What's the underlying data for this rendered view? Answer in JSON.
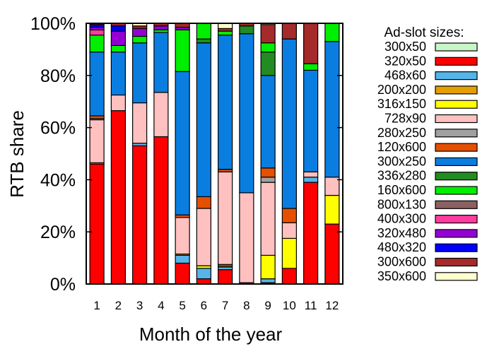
{
  "chart_data": {
    "type": "bar",
    "stacked": true,
    "title": "",
    "xlabel": "Month of the year",
    "ylabel": "RTB share",
    "ylim": [
      0,
      100
    ],
    "yticks": [
      "0%",
      "20%",
      "40%",
      "60%",
      "80%",
      "100%"
    ],
    "categories": [
      "1",
      "2",
      "3",
      "4",
      "5",
      "6",
      "7",
      "8",
      "9",
      "10",
      "11",
      "12"
    ],
    "legend_title": "Ad-slot sizes:",
    "legend_position": "right",
    "series": [
      {
        "name": "300x50",
        "color": "#c8f5c8",
        "values": [
          0,
          0,
          0,
          0,
          0,
          0,
          0,
          0,
          0,
          0,
          0,
          0
        ]
      },
      {
        "name": "320x50",
        "color": "#ff0000",
        "values": [
          46,
          66.5,
          53,
          56.5,
          8,
          2,
          5.5,
          0.5,
          0.5,
          6,
          39,
          23
        ]
      },
      {
        "name": "468x60",
        "color": "#56b4e9",
        "values": [
          0.5,
          0,
          1,
          0,
          3,
          4,
          1,
          0,
          1.5,
          0,
          2,
          0
        ]
      },
      {
        "name": "200x200",
        "color": "#e69f00",
        "values": [
          0,
          0,
          0,
          0,
          0.5,
          0,
          0.5,
          0,
          0,
          0,
          0,
          0
        ]
      },
      {
        "name": "316x150",
        "color": "#ffff00",
        "values": [
          0,
          0,
          0,
          0,
          0,
          1,
          0.5,
          0,
          9,
          11.5,
          0,
          11
        ]
      },
      {
        "name": "728x90",
        "color": "#ffc0c0",
        "values": [
          16.5,
          6,
          15.5,
          17,
          14,
          22,
          35.5,
          34.5,
          28,
          6,
          2,
          7
        ]
      },
      {
        "name": "280x250",
        "color": "#a0a0a0",
        "values": [
          0.5,
          0,
          0,
          0,
          0,
          0,
          0,
          0,
          2,
          0,
          0,
          0
        ]
      },
      {
        "name": "120x600",
        "color": "#e55000",
        "values": [
          1,
          0,
          0,
          0,
          1,
          4.5,
          1,
          0,
          3.5,
          5.5,
          0,
          0
        ]
      },
      {
        "name": "300x250",
        "color": "#0a7ee0",
        "values": [
          24.5,
          16.5,
          23,
          23,
          55,
          59,
          51.5,
          61,
          35.5,
          65,
          39,
          52
        ]
      },
      {
        "name": "336x280",
        "color": "#228b22",
        "values": [
          0,
          0,
          0,
          0,
          0,
          1.5,
          0,
          3,
          9,
          0,
          0,
          0
        ]
      },
      {
        "name": "160x600",
        "color": "#00ee00",
        "values": [
          6.5,
          2.5,
          2.5,
          1,
          16,
          6,
          1.5,
          0,
          3.5,
          0,
          2.5,
          7
        ]
      },
      {
        "name": "800x130",
        "color": "#8b6060",
        "values": [
          0,
          0,
          0,
          0,
          0,
          0,
          0,
          0,
          0,
          0,
          0,
          0
        ]
      },
      {
        "name": "400x300",
        "color": "#ff3ca0",
        "values": [
          2,
          0,
          0,
          0,
          0,
          0,
          0,
          0,
          0,
          0,
          0,
          0
        ]
      },
      {
        "name": "320x480",
        "color": "#9400d3",
        "values": [
          1,
          5.5,
          3,
          1.5,
          1,
          0,
          0,
          0,
          0,
          0,
          0,
          0
        ]
      },
      {
        "name": "480x320",
        "color": "#0000ff",
        "values": [
          1,
          2,
          0,
          0,
          0,
          0,
          0,
          0,
          0,
          0,
          0,
          0
        ]
      },
      {
        "name": "300x600",
        "color": "#a52a2a",
        "values": [
          0.5,
          1,
          1,
          1,
          1.5,
          0,
          1,
          1,
          7,
          6,
          15.5,
          0
        ]
      },
      {
        "name": "350x600",
        "color": "#ffffcc",
        "values": [
          0,
          0,
          1,
          0,
          0,
          0,
          2,
          0,
          0.5,
          0,
          0,
          0
        ]
      }
    ]
  }
}
